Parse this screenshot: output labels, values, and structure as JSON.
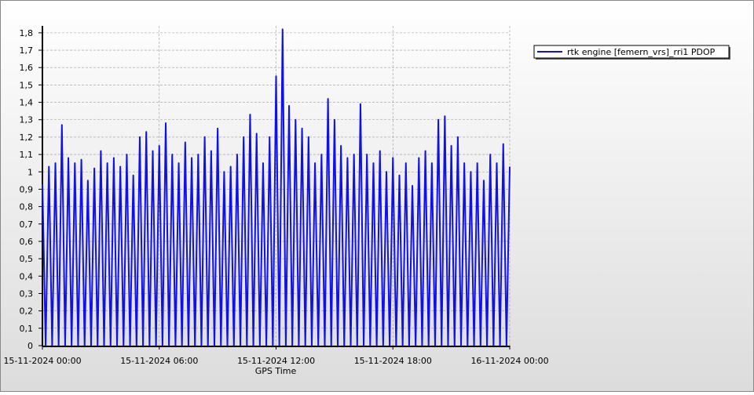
{
  "chart_data": {
    "type": "line",
    "xlabel": "GPS Time",
    "series": [
      {
        "name": "rtk engine [femern_vrs]_rri1 PDOP",
        "color": "#1010e8",
        "x": [
          "15-11-2024 00:00",
          "15-11-2024 00:10",
          "15-11-2024 00:20",
          "15-11-2024 00:30",
          "15-11-2024 00:40",
          "15-11-2024 00:50",
          "15-11-2024 01:00",
          "15-11-2024 01:10",
          "15-11-2024 01:20",
          "15-11-2024 01:30",
          "15-11-2024 01:40",
          "15-11-2024 01:50",
          "15-11-2024 02:00",
          "15-11-2024 02:10",
          "15-11-2024 02:20",
          "15-11-2024 02:30",
          "15-11-2024 02:40",
          "15-11-2024 02:50",
          "15-11-2024 03:00",
          "15-11-2024 03:10",
          "15-11-2024 03:20",
          "15-11-2024 03:30",
          "15-11-2024 03:40",
          "15-11-2024 03:50",
          "15-11-2024 04:00",
          "15-11-2024 04:10",
          "15-11-2024 04:20",
          "15-11-2024 04:30",
          "15-11-2024 04:40",
          "15-11-2024 04:50",
          "15-11-2024 05:00",
          "15-11-2024 05:10",
          "15-11-2024 05:20",
          "15-11-2024 05:30",
          "15-11-2024 05:40",
          "15-11-2024 05:50",
          "15-11-2024 06:00",
          "15-11-2024 06:10",
          "15-11-2024 06:20",
          "15-11-2024 06:30",
          "15-11-2024 06:40",
          "15-11-2024 06:50",
          "15-11-2024 07:00",
          "15-11-2024 07:10",
          "15-11-2024 07:20",
          "15-11-2024 07:30",
          "15-11-2024 07:40",
          "15-11-2024 07:50",
          "15-11-2024 08:00",
          "15-11-2024 08:10",
          "15-11-2024 08:20",
          "15-11-2024 08:30",
          "15-11-2024 08:40",
          "15-11-2024 08:50",
          "15-11-2024 09:00",
          "15-11-2024 09:10",
          "15-11-2024 09:20",
          "15-11-2024 09:30",
          "15-11-2024 09:40",
          "15-11-2024 09:50",
          "15-11-2024 10:00",
          "15-11-2024 10:10",
          "15-11-2024 10:20",
          "15-11-2024 10:30",
          "15-11-2024 10:40",
          "15-11-2024 10:50",
          "15-11-2024 11:00",
          "15-11-2024 11:10",
          "15-11-2024 11:20",
          "15-11-2024 11:30",
          "15-11-2024 11:40",
          "15-11-2024 11:50",
          "15-11-2024 12:00",
          "15-11-2024 12:10",
          "15-11-2024 12:20",
          "15-11-2024 12:30",
          "15-11-2024 12:40",
          "15-11-2024 12:50",
          "15-11-2024 13:00",
          "15-11-2024 13:10",
          "15-11-2024 13:20",
          "15-11-2024 13:30",
          "15-11-2024 13:40",
          "15-11-2024 13:50",
          "15-11-2024 14:00",
          "15-11-2024 14:10",
          "15-11-2024 14:20",
          "15-11-2024 14:30",
          "15-11-2024 14:40",
          "15-11-2024 14:50",
          "15-11-2024 15:00",
          "15-11-2024 15:10",
          "15-11-2024 15:20",
          "15-11-2024 15:30",
          "15-11-2024 15:40",
          "15-11-2024 15:50",
          "15-11-2024 16:00",
          "15-11-2024 16:10",
          "15-11-2024 16:20",
          "15-11-2024 16:30",
          "15-11-2024 16:40",
          "15-11-2024 16:50",
          "15-11-2024 17:00",
          "15-11-2024 17:10",
          "15-11-2024 17:20",
          "15-11-2024 17:30",
          "15-11-2024 17:40",
          "15-11-2024 17:50",
          "15-11-2024 18:00",
          "15-11-2024 18:10",
          "15-11-2024 18:20",
          "15-11-2024 18:30",
          "15-11-2024 18:40",
          "15-11-2024 18:50",
          "15-11-2024 19:00",
          "15-11-2024 19:10",
          "15-11-2024 19:20",
          "15-11-2024 19:30",
          "15-11-2024 19:40",
          "15-11-2024 19:50",
          "15-11-2024 20:00",
          "15-11-2024 20:10",
          "15-11-2024 20:20",
          "15-11-2024 20:30",
          "15-11-2024 20:40",
          "15-11-2024 20:50",
          "15-11-2024 21:00",
          "15-11-2024 21:10",
          "15-11-2024 21:20",
          "15-11-2024 21:30",
          "15-11-2024 21:40",
          "15-11-2024 21:50",
          "15-11-2024 22:00",
          "15-11-2024 22:10",
          "15-11-2024 22:20",
          "15-11-2024 22:30",
          "15-11-2024 22:40",
          "15-11-2024 22:50",
          "15-11-2024 23:00",
          "15-11-2024 23:10",
          "15-11-2024 23:20",
          "15-11-2024 23:30",
          "15-11-2024 23:40",
          "15-11-2024 23:50",
          "16-11-2024 00:00"
        ],
        "values": [
          0.93,
          0,
          1.03,
          0,
          1.05,
          0,
          1.27,
          0,
          1.08,
          0,
          1.05,
          0,
          1.07,
          0,
          0.95,
          0,
          1.02,
          0,
          1.12,
          0,
          1.05,
          0,
          1.08,
          0,
          1.03,
          0,
          1.1,
          0,
          0.98,
          0,
          1.2,
          0,
          1.23,
          0,
          1.12,
          0,
          1.15,
          0,
          1.28,
          0,
          1.1,
          0,
          1.05,
          0,
          1.17,
          0,
          1.08,
          0,
          1.1,
          0,
          1.2,
          0,
          1.12,
          0,
          1.25,
          0,
          1.0,
          0,
          1.03,
          0,
          1.1,
          0,
          1.2,
          0,
          1.33,
          0,
          1.22,
          0,
          1.05,
          0,
          1.2,
          0,
          1.55,
          0,
          1.82,
          0,
          1.38,
          0,
          1.3,
          0,
          1.25,
          0,
          1.2,
          0,
          1.05,
          0,
          1.1,
          0,
          1.42,
          0,
          1.3,
          0,
          1.15,
          0,
          1.08,
          0,
          1.1,
          0,
          1.39,
          0,
          1.1,
          0,
          1.05,
          0,
          1.12,
          0,
          1.0,
          0,
          1.08,
          0,
          0.98,
          0,
          1.05,
          0,
          0.92,
          0,
          1.08,
          0,
          1.12,
          0,
          1.05,
          0,
          1.3,
          0,
          1.32,
          0,
          1.15,
          0,
          1.2,
          0,
          1.05,
          0,
          1.0,
          0,
          1.05,
          0,
          0.95,
          0,
          1.1,
          0,
          1.05,
          0,
          1.16,
          0,
          1.03
        ]
      }
    ],
    "xlim": [
      "15-11-2024 00:00",
      "16-11-2024 00:00"
    ],
    "xticks": [
      "15-11-2024 00:00",
      "15-11-2024 06:00",
      "15-11-2024 12:00",
      "15-11-2024 18:00",
      "16-11-2024 00:00"
    ],
    "ylim": [
      0,
      1.84
    ],
    "yticks": [
      0,
      {
        "value": 0.1,
        "label": "0,1"
      },
      {
        "value": 0.2,
        "label": "0,2"
      },
      {
        "value": 0.3,
        "label": "0,3"
      },
      {
        "value": 0.4,
        "label": "0,4"
      },
      {
        "value": 0.5,
        "label": "0,5"
      },
      {
        "value": 0.6,
        "label": "0,6"
      },
      {
        "value": 0.7,
        "label": "0,7"
      },
      {
        "value": 0.8,
        "label": "0,8"
      },
      {
        "value": 0.9,
        "label": "0,9"
      },
      1,
      {
        "value": 1.1,
        "label": "1,1"
      },
      {
        "value": 1.2,
        "label": "1,2"
      },
      {
        "value": 1.3,
        "label": "1,3"
      },
      {
        "value": 1.4,
        "label": "1,4"
      },
      {
        "value": 1.5,
        "label": "1,5"
      },
      {
        "value": 1.6,
        "label": "1,6"
      },
      {
        "value": 1.7,
        "label": "1,7"
      },
      {
        "value": 1.8,
        "label": "1,8"
      }
    ],
    "grid": true,
    "legend": "top-right"
  }
}
